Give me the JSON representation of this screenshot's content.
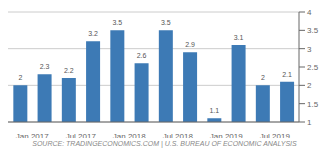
{
  "chart_data": {
    "type": "bar",
    "categories": [
      "Jan 2017",
      null,
      "Jul 2017",
      null,
      "Jan 2018",
      null,
      "Jul 2018",
      null,
      "Jan 2019",
      null,
      "Jul 2019",
      null
    ],
    "values": [
      2.0,
      2.3,
      2.2,
      3.2,
      3.5,
      2.6,
      3.5,
      2.9,
      1.1,
      3.1,
      2.0,
      2.1
    ],
    "color": "#3d7ab5",
    "ylim": [
      1.0,
      4.0
    ],
    "yticks": [
      1.0,
      1.5,
      2.0,
      2.5,
      3.0,
      3.5,
      4.0
    ],
    "grid": true,
    "data_labels": true,
    "annotations": [
      "SOURCE: TRADINGECONOMICS.COM | U.S. BUREAU OF ECONOMIC ANALYSIS"
    ]
  }
}
